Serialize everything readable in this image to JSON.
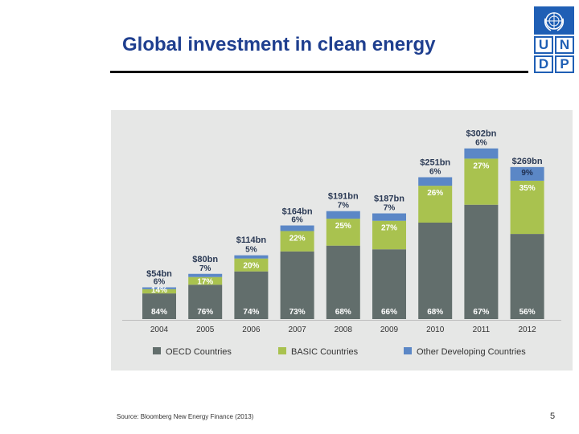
{
  "slide": {
    "title": "Global investment in clean energy",
    "source": "Source: Bloomberg New Energy Finance (2013)",
    "page_number": "5",
    "logo_letters": [
      "U",
      "N",
      "D",
      "P"
    ]
  },
  "colors": {
    "oecd": "#626e6c",
    "basic": "#a9c24f",
    "other": "#5b87c6",
    "panel": "#e6e7e6",
    "title": "#1f3f8f",
    "logo": "#1f5fb5"
  },
  "chart_data": {
    "type": "bar",
    "stacked": true,
    "title": "",
    "xlabel": "",
    "ylabel": "",
    "ylim": [
      0,
      320
    ],
    "categories": [
      "2004",
      "2005",
      "2006",
      "2007",
      "2008",
      "2009",
      "2010",
      "2011",
      "2012"
    ],
    "totals": [
      54,
      80,
      114,
      164,
      191,
      187,
      251,
      302,
      269
    ],
    "total_labels": [
      "$54bn",
      "$80bn",
      "$114bn",
      "$164bn",
      "$191bn",
      "$187bn",
      "$251bn",
      "$302bn",
      "$269bn"
    ],
    "series": [
      {
        "name": "OECD Countries",
        "color": "#626e6c",
        "percent": [
          84,
          76,
          74,
          73,
          68,
          66,
          68,
          67,
          56
        ],
        "labels": [
          "84%",
          "76%",
          "74%",
          "73%",
          "68%",
          "66%",
          "68%",
          "67%",
          "56%"
        ]
      },
      {
        "name": "BASIC Countries",
        "color": "#a9c24f",
        "percent": [
          14,
          17,
          20,
          22,
          25,
          27,
          26,
          27,
          35
        ],
        "labels": [
          "14%",
          "17%",
          "20%",
          "22%",
          "25%",
          "27%",
          "26%",
          "27%",
          "35%"
        ]
      },
      {
        "name": "Other Developing Countries",
        "color": "#5b87c6",
        "percent": [
          6,
          7,
          5,
          6,
          7,
          7,
          6,
          6,
          9
        ],
        "labels": [
          "6%",
          "7%",
          "5%",
          "6%",
          "7%",
          "7%",
          "6%",
          "6%",
          "9%"
        ]
      }
    ],
    "legend_position": "bottom"
  }
}
